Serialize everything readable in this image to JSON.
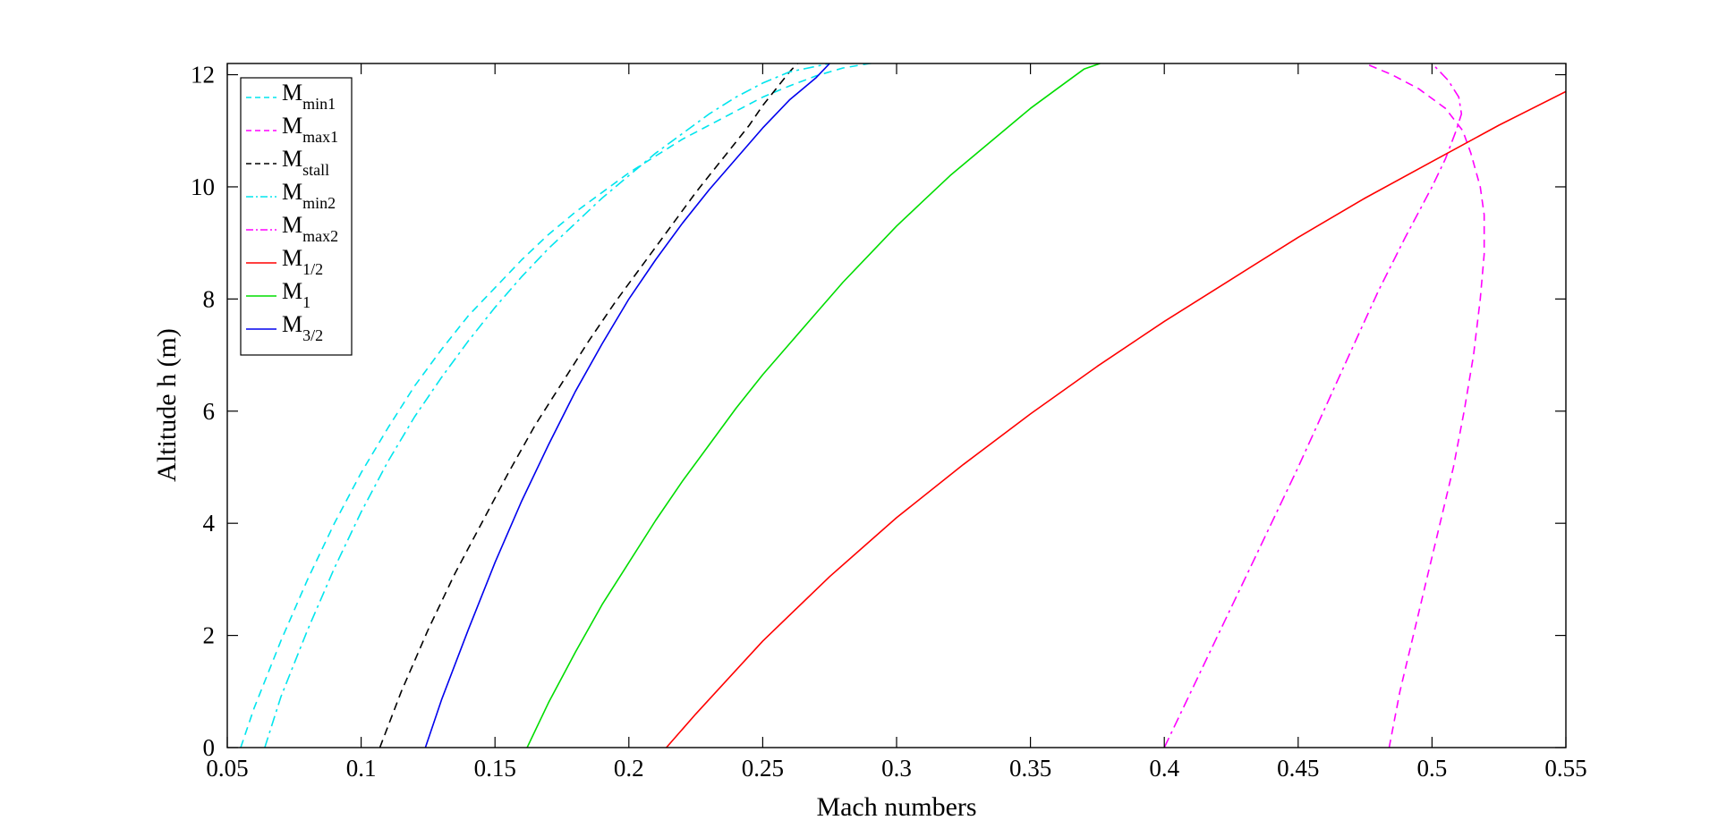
{
  "chart_data": {
    "type": "line",
    "title": "",
    "xlabel": "Mach numbers",
    "ylabel": "Altitude h (m)",
    "xlim": [
      0.05,
      0.55
    ],
    "ylim": [
      0,
      12.2
    ],
    "grid": false,
    "legend_position": "top-left",
    "x_ticks": [
      "0.05",
      "0.1",
      "0.15",
      "0.2",
      "0.25",
      "0.3",
      "0.35",
      "0.4",
      "0.45",
      "0.5",
      "0.55"
    ],
    "y_ticks": [
      "0",
      "2",
      "4",
      "6",
      "8",
      "10",
      "12"
    ],
    "series": [
      {
        "name": "M",
        "sub": "min1",
        "color": "#00e5ee",
        "dash": "dashed",
        "points": [
          [
            0.055,
            0
          ],
          [
            0.06,
            0.7
          ],
          [
            0.07,
            1.9
          ],
          [
            0.08,
            3.0
          ],
          [
            0.09,
            4.0
          ],
          [
            0.1,
            4.9
          ],
          [
            0.11,
            5.7
          ],
          [
            0.12,
            6.45
          ],
          [
            0.13,
            7.1
          ],
          [
            0.14,
            7.7
          ],
          [
            0.15,
            8.2
          ],
          [
            0.16,
            8.7
          ],
          [
            0.17,
            9.15
          ],
          [
            0.18,
            9.55
          ],
          [
            0.19,
            9.9
          ],
          [
            0.2,
            10.25
          ],
          [
            0.21,
            10.55
          ],
          [
            0.22,
            10.85
          ],
          [
            0.23,
            11.1
          ],
          [
            0.24,
            11.35
          ],
          [
            0.25,
            11.6
          ],
          [
            0.26,
            11.8
          ],
          [
            0.27,
            11.98
          ],
          [
            0.28,
            12.12
          ],
          [
            0.29,
            12.2
          ],
          [
            0.298,
            12.22
          ]
        ]
      },
      {
        "name": "M",
        "sub": "max1",
        "color": "#ff00ff",
        "dash": "dashed",
        "points": [
          [
            0.484,
            0
          ],
          [
            0.488,
            1.0
          ],
          [
            0.493,
            2.0
          ],
          [
            0.498,
            3.0
          ],
          [
            0.503,
            4.0
          ],
          [
            0.508,
            5.0
          ],
          [
            0.512,
            6.0
          ],
          [
            0.5155,
            7.0
          ],
          [
            0.518,
            8.0
          ],
          [
            0.5195,
            8.8
          ],
          [
            0.5195,
            9.5
          ],
          [
            0.518,
            10.0
          ],
          [
            0.5145,
            10.6
          ],
          [
            0.5115,
            11.0
          ],
          [
            0.505,
            11.4
          ],
          [
            0.495,
            11.75
          ],
          [
            0.485,
            12.0
          ],
          [
            0.475,
            12.2
          ]
        ]
      },
      {
        "name": "M",
        "sub": "stall",
        "color": "#000000",
        "dash": "dashed",
        "points": [
          [
            0.107,
            0
          ],
          [
            0.115,
            1.0
          ],
          [
            0.125,
            2.1
          ],
          [
            0.135,
            3.1
          ],
          [
            0.145,
            4.0
          ],
          [
            0.155,
            4.9
          ],
          [
            0.165,
            5.75
          ],
          [
            0.175,
            6.5
          ],
          [
            0.185,
            7.25
          ],
          [
            0.195,
            7.95
          ],
          [
            0.205,
            8.6
          ],
          [
            0.215,
            9.25
          ],
          [
            0.225,
            9.9
          ],
          [
            0.235,
            10.5
          ],
          [
            0.24,
            10.8
          ],
          [
            0.245,
            11.1
          ],
          [
            0.25,
            11.45
          ],
          [
            0.255,
            11.75
          ],
          [
            0.26,
            12.05
          ],
          [
            0.263,
            12.2
          ]
        ]
      },
      {
        "name": "M",
        "sub": "min2",
        "color": "#00e5ee",
        "dash": "dashdot",
        "points": [
          [
            0.064,
            0
          ],
          [
            0.07,
            0.9
          ],
          [
            0.08,
            2.1
          ],
          [
            0.09,
            3.2
          ],
          [
            0.1,
            4.2
          ],
          [
            0.11,
            5.1
          ],
          [
            0.12,
            5.9
          ],
          [
            0.13,
            6.6
          ],
          [
            0.14,
            7.25
          ],
          [
            0.15,
            7.85
          ],
          [
            0.16,
            8.4
          ],
          [
            0.17,
            8.9
          ],
          [
            0.18,
            9.35
          ],
          [
            0.19,
            9.8
          ],
          [
            0.2,
            10.2
          ],
          [
            0.21,
            10.6
          ],
          [
            0.22,
            10.95
          ],
          [
            0.23,
            11.3
          ],
          [
            0.24,
            11.6
          ],
          [
            0.25,
            11.85
          ],
          [
            0.26,
            12.05
          ],
          [
            0.275,
            12.2
          ]
        ]
      },
      {
        "name": "M",
        "sub": "max2",
        "color": "#ff00ff",
        "dash": "dashdot",
        "points": [
          [
            0.4,
            0
          ],
          [
            0.41,
            1.0
          ],
          [
            0.42,
            2.0
          ],
          [
            0.43,
            3.0
          ],
          [
            0.44,
            4.0
          ],
          [
            0.45,
            5.0
          ],
          [
            0.46,
            6.05
          ],
          [
            0.47,
            7.1
          ],
          [
            0.48,
            8.15
          ],
          [
            0.49,
            9.1
          ],
          [
            0.5,
            10.0
          ],
          [
            0.505,
            10.5
          ],
          [
            0.509,
            11.0
          ],
          [
            0.511,
            11.3
          ],
          [
            0.51,
            11.6
          ],
          [
            0.506,
            11.9
          ],
          [
            0.5,
            12.2
          ]
        ]
      },
      {
        "name": "M",
        "sub": "1/2",
        "color": "#ff0000",
        "dash": "solid",
        "points": [
          [
            0.214,
            0
          ],
          [
            0.225,
            0.6
          ],
          [
            0.25,
            1.9
          ],
          [
            0.275,
            3.05
          ],
          [
            0.3,
            4.1
          ],
          [
            0.325,
            5.05
          ],
          [
            0.35,
            5.95
          ],
          [
            0.375,
            6.8
          ],
          [
            0.4,
            7.6
          ],
          [
            0.425,
            8.35
          ],
          [
            0.45,
            9.1
          ],
          [
            0.475,
            9.8
          ],
          [
            0.5,
            10.45
          ],
          [
            0.525,
            11.1
          ],
          [
            0.55,
            11.7
          ],
          [
            0.575,
            12.2
          ]
        ]
      },
      {
        "name": "M",
        "sub": "1",
        "color": "#00dd00",
        "dash": "solid",
        "points": [
          [
            0.162,
            0
          ],
          [
            0.17,
            0.8
          ],
          [
            0.18,
            1.7
          ],
          [
            0.19,
            2.55
          ],
          [
            0.2,
            3.3
          ],
          [
            0.21,
            4.05
          ],
          [
            0.22,
            4.75
          ],
          [
            0.23,
            5.4
          ],
          [
            0.24,
            6.05
          ],
          [
            0.25,
            6.65
          ],
          [
            0.26,
            7.2
          ],
          [
            0.27,
            7.75
          ],
          [
            0.28,
            8.3
          ],
          [
            0.29,
            8.8
          ],
          [
            0.3,
            9.3
          ],
          [
            0.31,
            9.75
          ],
          [
            0.32,
            10.2
          ],
          [
            0.33,
            10.6
          ],
          [
            0.34,
            11.0
          ],
          [
            0.35,
            11.4
          ],
          [
            0.36,
            11.75
          ],
          [
            0.37,
            12.1
          ],
          [
            0.376,
            12.2
          ]
        ]
      },
      {
        "name": "M",
        "sub": "3/2",
        "color": "#0000ee",
        "dash": "solid",
        "points": [
          [
            0.124,
            0
          ],
          [
            0.13,
            0.85
          ],
          [
            0.14,
            2.1
          ],
          [
            0.15,
            3.3
          ],
          [
            0.16,
            4.4
          ],
          [
            0.17,
            5.4
          ],
          [
            0.18,
            6.35
          ],
          [
            0.19,
            7.2
          ],
          [
            0.2,
            8.0
          ],
          [
            0.21,
            8.7
          ],
          [
            0.22,
            9.35
          ],
          [
            0.23,
            9.95
          ],
          [
            0.24,
            10.5
          ],
          [
            0.25,
            11.05
          ],
          [
            0.26,
            11.55
          ],
          [
            0.27,
            11.95
          ],
          [
            0.275,
            12.2
          ]
        ]
      }
    ]
  }
}
